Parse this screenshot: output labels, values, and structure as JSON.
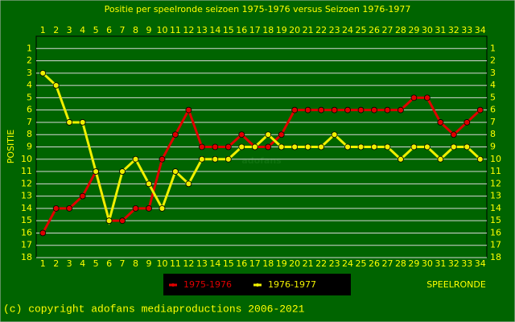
{
  "chart_data": {
    "type": "line",
    "title": "Positie per speelronde seizoen 1975-1976 versus Seizoen 1976-1977",
    "y_label": "POSITIE",
    "x_label": "SPEELRONDE",
    "watermark": "adofans",
    "footer": "(c) copyright adofans mediaproductions 2006-2021",
    "x": [
      1,
      2,
      3,
      4,
      5,
      6,
      7,
      8,
      9,
      10,
      11,
      12,
      13,
      14,
      15,
      16,
      17,
      18,
      19,
      20,
      21,
      22,
      23,
      24,
      25,
      26,
      27,
      28,
      29,
      30,
      31,
      32,
      33,
      34
    ],
    "xlim": [
      0.5,
      34.5
    ],
    "xticks": [
      1,
      2,
      3,
      4,
      5,
      6,
      7,
      8,
      9,
      10,
      11,
      12,
      13,
      14,
      15,
      16,
      17,
      18,
      19,
      20,
      21,
      22,
      23,
      24,
      25,
      26,
      27,
      28,
      29,
      30,
      31,
      32,
      33,
      34
    ],
    "ylim": [
      0,
      18
    ],
    "y_inverted": true,
    "yticks": [
      1,
      2,
      3,
      4,
      5,
      6,
      7,
      8,
      9,
      10,
      11,
      12,
      13,
      14,
      15,
      16,
      17,
      18
    ],
    "grid": true,
    "series": [
      {
        "name": "1975-1976",
        "color": "#e00000",
        "values": [
          16,
          14,
          14,
          13,
          11,
          15,
          15,
          14,
          14,
          10,
          8,
          6,
          9,
          9,
          9,
          8,
          9,
          9,
          8,
          6,
          6,
          6,
          6,
          6,
          6,
          6,
          6,
          6,
          5,
          5,
          7,
          8,
          7,
          6
        ]
      },
      {
        "name": "1976-1977",
        "color": "#f0f000",
        "values": [
          3,
          4,
          7,
          7,
          11,
          15,
          11,
          10,
          12,
          14,
          11,
          12,
          10,
          10,
          10,
          9,
          9,
          8,
          9,
          9,
          9,
          9,
          8,
          9,
          9,
          9,
          9,
          10,
          9,
          9,
          10,
          9,
          9,
          10
        ]
      }
    ]
  }
}
